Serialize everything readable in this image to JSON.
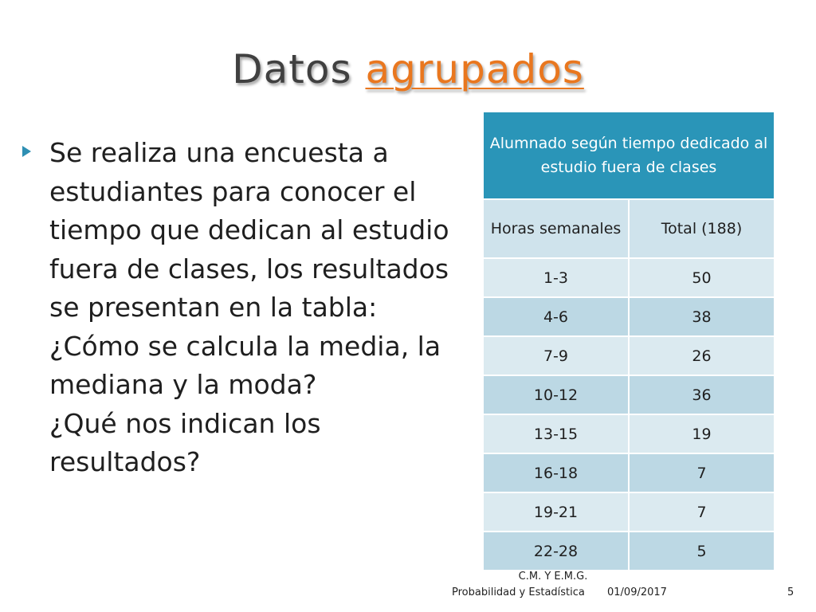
{
  "title": {
    "word1": "Datos",
    "word2": "agrupados"
  },
  "bullets": [
    "Se realiza una encuesta a estudiantes para conocer el tiempo que dedican al estudio fuera de clases, los resultados se presentan en la tabla:",
    "¿Cómo se calcula la media, la mediana y la moda?",
    "¿Qué nos indican los resultados?"
  ],
  "table": {
    "caption": "Alumnado según tiempo dedicado al estudio fuera de clases",
    "col1_header": "Horas semanales",
    "col2_header": "Total (188)",
    "rows": [
      {
        "range": "1-3",
        "total": "50"
      },
      {
        "range": "4-6",
        "total": "38"
      },
      {
        "range": "7-9",
        "total": "26"
      },
      {
        "range": "10-12",
        "total": "36"
      },
      {
        "range": "13-15",
        "total": "19"
      },
      {
        "range": "16-18",
        "total": "7"
      },
      {
        "range": "19-21",
        "total": "7"
      },
      {
        "range": "22-28",
        "total": "5"
      }
    ]
  },
  "footer": {
    "author": "C.M. Y E.M.G.",
    "course": "Probabilidad y Estadística",
    "date": "01/09/2017",
    "page": "5"
  },
  "colors": {
    "accent_orange": "#e9771f",
    "header_blue": "#2a95b8",
    "row_light": "#dbeaf0",
    "row_dark": "#bcd8e4",
    "bullet": "#2e8fb3"
  }
}
